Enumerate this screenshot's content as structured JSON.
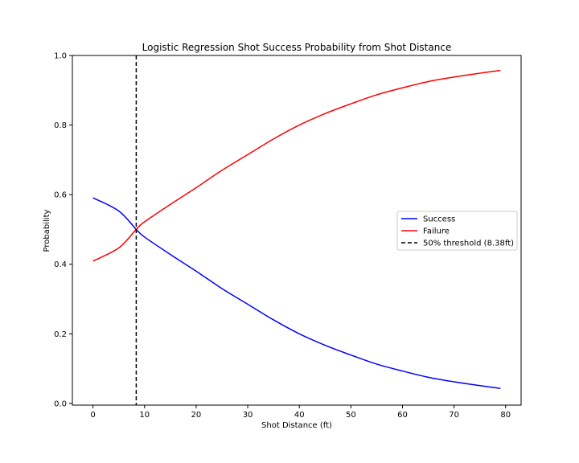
{
  "chart_data": {
    "type": "line",
    "title": "Logistic Regression Shot Success Probability from Shot Distance",
    "xlabel": "Shot Distance (ft)",
    "ylabel": "Probability",
    "xlim": [
      -4,
      83
    ],
    "ylim": [
      -0.005,
      1.0
    ],
    "xticks": [
      0,
      10,
      20,
      30,
      40,
      50,
      60,
      70,
      80
    ],
    "yticks": [
      0.0,
      0.2,
      0.4,
      0.6,
      0.8,
      1.0
    ],
    "grid": false,
    "legend_position": "center-right",
    "series": [
      {
        "name": "Success",
        "color": "#0000ff",
        "x": [
          0,
          5,
          8.38,
          10,
          15,
          20,
          25,
          30,
          35,
          40,
          45,
          50,
          55,
          60,
          65,
          70,
          75,
          79
        ],
        "y": [
          0.591,
          0.553,
          0.5,
          0.478,
          0.428,
          0.38,
          0.33,
          0.285,
          0.24,
          0.2,
          0.167,
          0.139,
          0.113,
          0.093,
          0.075,
          0.062,
          0.051,
          0.043
        ]
      },
      {
        "name": "Failure",
        "color": "#ff0000",
        "x": [
          0,
          5,
          8.38,
          10,
          15,
          20,
          25,
          30,
          35,
          40,
          45,
          50,
          55,
          60,
          65,
          70,
          75,
          79
        ],
        "y": [
          0.409,
          0.447,
          0.5,
          0.522,
          0.572,
          0.62,
          0.67,
          0.715,
          0.76,
          0.8,
          0.833,
          0.861,
          0.887,
          0.907,
          0.925,
          0.938,
          0.949,
          0.957
        ]
      }
    ],
    "threshold": {
      "name": "50% threshold (8.38ft)",
      "x": 8.38,
      "color": "#000000"
    }
  }
}
